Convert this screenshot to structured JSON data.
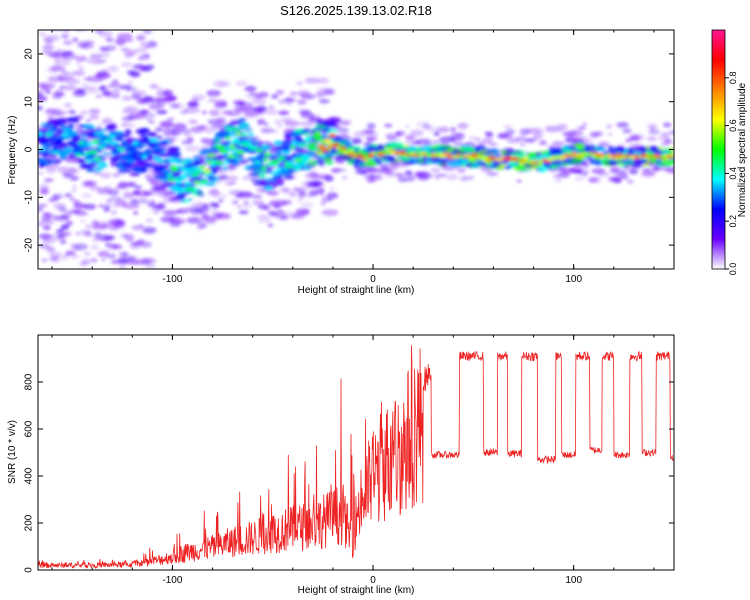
{
  "figure": {
    "title": "S126.2025.139.13.02.R18"
  },
  "chart_data": [
    {
      "type": "heatmap",
      "xlabel": "Height of straight line (km)",
      "ylabel": "Frequency (Hz)",
      "xlim": [
        -167,
        150
      ],
      "ylim": [
        -25,
        25
      ],
      "xticks": [
        -100,
        0,
        100
      ],
      "yticks": [
        -20,
        -10,
        0,
        10,
        20
      ],
      "colorbar": {
        "label": "Normalized spectral amplitude",
        "range": [
          0,
          1
        ],
        "ticks": [
          "0.0",
          "0.2",
          "0.4",
          "0.6",
          "0.8"
        ],
        "tick_values": [
          0.0,
          0.2,
          0.4,
          0.6,
          0.8
        ],
        "colors": [
          "#ffffff",
          "#6a00ff",
          "#0000ff",
          "#00ffff",
          "#00ff00",
          "#ffff00",
          "#ff8000",
          "#ff0000",
          "#ff1493"
        ]
      },
      "ridge": {
        "x": [
          -167,
          -150,
          -140,
          -130,
          -120,
          -110,
          -100,
          -95,
          -90,
          -85,
          -80,
          -75,
          -70,
          -65,
          -60,
          -55,
          -50,
          -45,
          -40,
          -35,
          -30,
          -25,
          -20,
          -15,
          -10,
          -5,
          0,
          10,
          20,
          30,
          40,
          50,
          60,
          70,
          80,
          85,
          90,
          95,
          100,
          110,
          120,
          130,
          140,
          150
        ],
        "y": [
          1,
          2,
          0,
          1,
          -1,
          0,
          -4,
          -7,
          -6,
          -5,
          -3,
          0,
          1,
          2,
          -2,
          -3,
          -4,
          -2,
          -1,
          0,
          1,
          2,
          1,
          0,
          -1,
          -2,
          -1,
          -0.5,
          -1,
          -1,
          -1.5,
          -1.5,
          -2,
          -2,
          -2.5,
          -2.5,
          -2,
          -1.5,
          -1,
          -1,
          -1.5,
          -1.5,
          -1.5,
          -1.5
        ],
        "strength": [
          0.35,
          0.4,
          0.45,
          0.4,
          0.35,
          0.35,
          0.45,
          0.5,
          0.5,
          0.55,
          0.55,
          0.5,
          0.55,
          0.5,
          0.45,
          0.5,
          0.45,
          0.45,
          0.5,
          0.55,
          0.6,
          0.7,
          0.8,
          0.85,
          0.85,
          0.8,
          0.75,
          0.85,
          0.85,
          0.75,
          0.75,
          0.8,
          0.85,
          0.85,
          0.8,
          0.75,
          0.7,
          0.7,
          0.7,
          0.75,
          0.8,
          0.85,
          0.8,
          0.8
        ]
      }
    },
    {
      "type": "line",
      "xlabel": "Height of straight line (km)",
      "ylabel": "SNR (10 * v/v)",
      "xlim": [
        -167,
        150
      ],
      "ylim": [
        0,
        1000
      ],
      "xticks": [
        -100,
        0,
        100
      ],
      "yticks": [
        0,
        200,
        400,
        600,
        800
      ],
      "color": "#ee2222",
      "series": [
        {
          "x": [
            -167,
            -140,
            -120,
            -110,
            -100,
            -90,
            -80,
            -70,
            -60,
            -50,
            -40,
            -30,
            -20,
            -15,
            -12,
            -10,
            -8,
            -5,
            0,
            5,
            10,
            15,
            20,
            25,
            30,
            35,
            40,
            50,
            60,
            70,
            80,
            90,
            100,
            110,
            120,
            130,
            140,
            150
          ],
          "baseline": [
            25,
            25,
            30,
            45,
            70,
            100,
            120,
            150,
            170,
            200,
            220,
            240,
            280,
            300,
            200,
            150,
            300,
            380,
            500,
            560,
            600,
            640,
            750,
            800,
            860,
            900,
            910,
            910,
            910,
            910,
            910,
            910,
            910,
            910,
            910,
            910,
            910,
            910
          ],
          "spread": [
            10,
            10,
            15,
            30,
            60,
            90,
            120,
            160,
            180,
            200,
            220,
            260,
            300,
            350,
            400,
            400,
            250,
            150,
            120,
            120,
            100,
            100,
            80,
            60,
            40,
            30,
            20,
            20,
            20,
            20,
            20,
            20,
            20,
            20,
            20,
            20,
            20,
            20
          ],
          "dips": [
            {
              "start": 29,
              "end": 43,
              "value": 490
            },
            {
              "start": 55,
              "end": 62,
              "value": 500
            },
            {
              "start": 67,
              "end": 74,
              "value": 495
            },
            {
              "start": 82,
              "end": 91,
              "value": 470
            },
            {
              "start": 94,
              "end": 101,
              "value": 490
            },
            {
              "start": 108,
              "end": 114,
              "value": 510
            },
            {
              "start": 120,
              "end": 128,
              "value": 490
            },
            {
              "start": 134,
              "end": 141,
              "value": 500
            },
            {
              "start": 148,
              "end": 150,
              "value": 480
            }
          ]
        }
      ]
    }
  ]
}
